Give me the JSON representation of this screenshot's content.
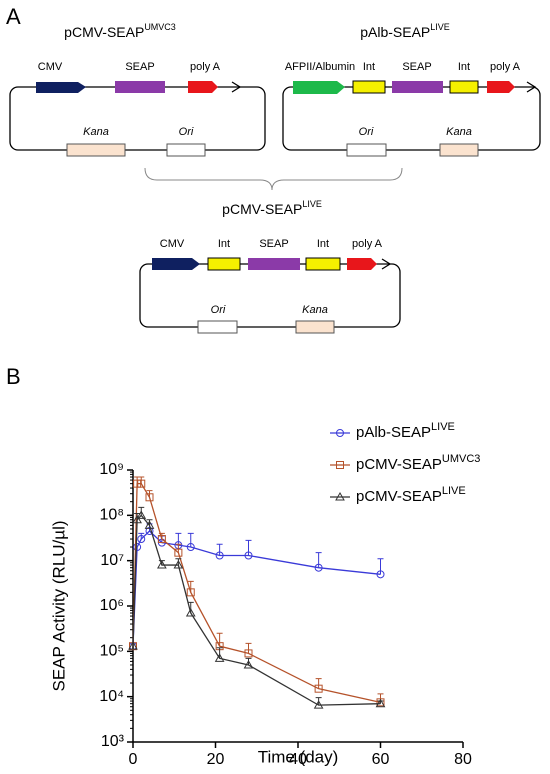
{
  "panel_labels": [
    "A",
    "B"
  ],
  "diagram": {
    "plasmids": [
      {
        "title": {
          "base": "pCMV-SEAP",
          "sup": "UMVC3"
        },
        "elements": [
          "CMV",
          "SEAP",
          "poly  A"
        ],
        "backbone": [
          "Kana",
          "Ori"
        ]
      },
      {
        "title": {
          "base": "pAlb-SEAP",
          "sup": "LIVE"
        },
        "elements": [
          "AFPII/Albumin",
          "Int",
          "SEAP",
          "Int",
          "poly A"
        ],
        "backbone": [
          "Ori",
          "Kana"
        ]
      },
      {
        "title": {
          "base": "pCMV-SEAP",
          "sup": "LIVE"
        },
        "elements": [
          "CMV",
          "Int",
          "SEAP",
          "Int",
          "poly A"
        ],
        "backbone": [
          "Ori",
          "Kana"
        ]
      }
    ]
  },
  "chart_data": {
    "type": "line",
    "x_label": "Time (day)",
    "y_label": "SEAP Activity (RLU/µl)",
    "xlim": [
      0,
      80
    ],
    "xticks": [
      0,
      20,
      40,
      60,
      80
    ],
    "ylim": [
      1000,
      1000000000
    ],
    "log_y": true,
    "yticks": [
      {
        "value": 1000,
        "label": "10³"
      },
      {
        "value": 10000,
        "label": "10⁴"
      },
      {
        "value": 100000,
        "label": "10⁵"
      },
      {
        "value": 1000000,
        "label": "10⁶"
      },
      {
        "value": 10000000,
        "label": "10⁷"
      },
      {
        "value": 100000000,
        "label": "10⁸"
      },
      {
        "value": 1000000000,
        "label": "10⁹"
      }
    ],
    "legend": "upper right",
    "x": [
      0,
      1,
      2,
      4,
      7,
      11,
      14,
      21,
      28,
      45,
      60
    ],
    "series": [
      {
        "name": "pAlb-SEAP",
        "name_sup": "LIVE",
        "color": "#3a3ad8",
        "marker": "circle",
        "values": [
          130000,
          20000000,
          30000000,
          45000000,
          25000000,
          22000000,
          20000000,
          13000000,
          13000000,
          7000000,
          5000000
        ],
        "errors": [
          0,
          0,
          10000000,
          20000000,
          10000000,
          18000000,
          20000000,
          10000000,
          15000000,
          8000000,
          6000000
        ]
      },
      {
        "name": "pCMV-SEAP",
        "name_sup": "UMVC3",
        "color": "#b5522a",
        "marker": "square",
        "values": [
          130000,
          500000000,
          500000000,
          250000000,
          30000000,
          15000000,
          2000000,
          130000,
          90000,
          15000,
          7500
        ],
        "errors": [
          0,
          200000000,
          200000000,
          100000000,
          10000000,
          8000000,
          1500000,
          120000,
          60000,
          10000,
          4000
        ]
      },
      {
        "name": "pCMV-SEAP",
        "name_sup": "LIVE",
        "color": "#333333",
        "marker": "triangle",
        "values": [
          130000,
          80000000,
          100000000,
          60000000,
          8000000,
          8000000,
          700000,
          70000,
          50000,
          6500,
          7000
        ],
        "errors": [
          0,
          30000000,
          50000000,
          20000000,
          2000000,
          3000000,
          500000,
          50000,
          20000,
          3000,
          1000
        ]
      }
    ]
  }
}
